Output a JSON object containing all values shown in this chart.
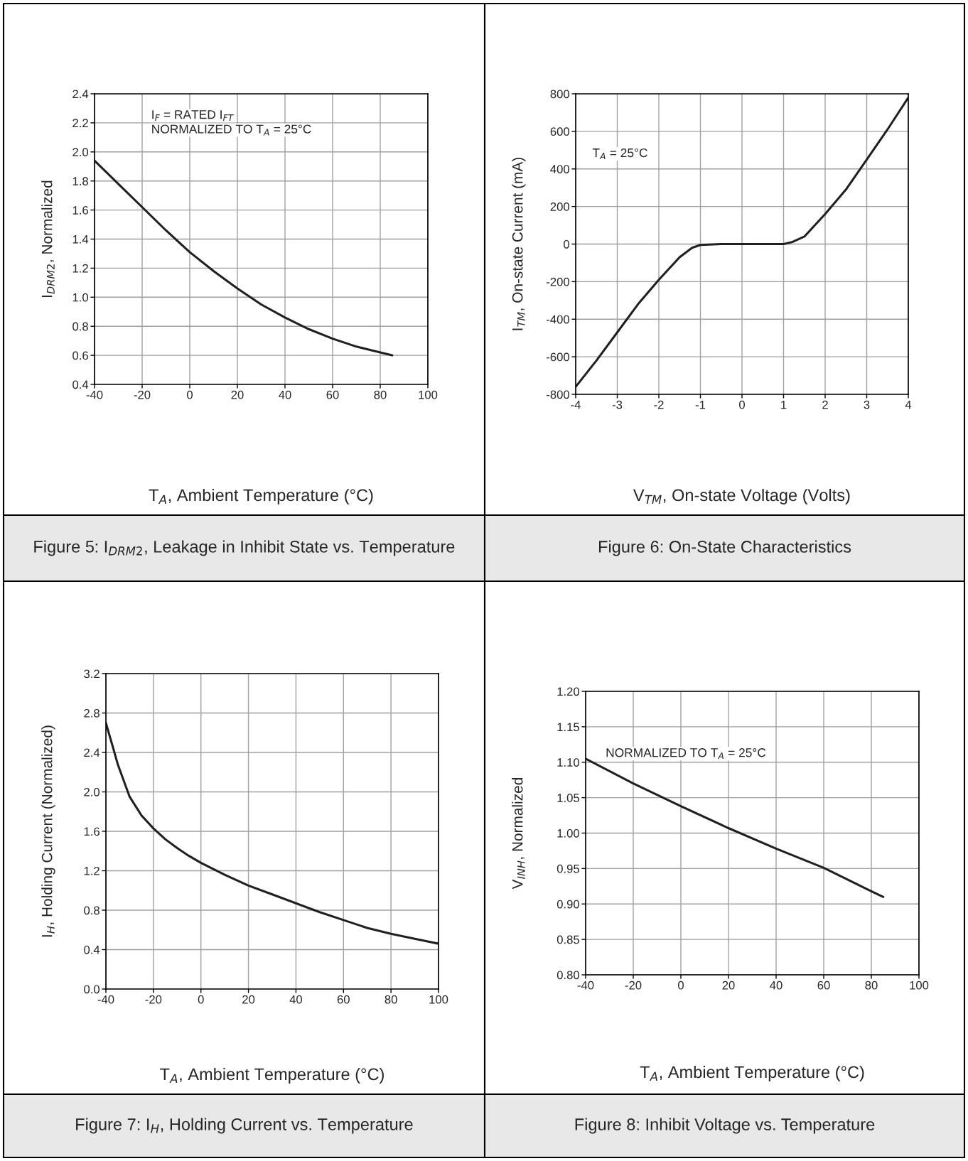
{
  "chart_data": [
    {
      "type": "line",
      "title": "Figure 5: I$_{DRM2}$, Leakage in Inhibit State vs. Temperature",
      "xlabel": "T$_{A}$, Ambient Temperature (°C)",
      "ylabel": "I$_{DRM2}$, Normalized",
      "annotations": [
        "I$_{F}$ = RATED I$_{FT}$",
        "NORMALIZED TO T$_{A}$ = 25°C"
      ],
      "series": [
        {
          "color": "#231f20",
          "x": [
            -40,
            -30,
            -20,
            -10,
            0,
            10,
            20,
            30,
            40,
            50,
            60,
            70,
            80,
            85
          ],
          "values": [
            1.94,
            1.78,
            1.62,
            1.46,
            1.31,
            1.18,
            1.06,
            0.95,
            0.86,
            0.78,
            0.715,
            0.66,
            0.62,
            0.6
          ]
        }
      ],
      "xlim": [
        -40,
        100
      ],
      "xticks": [
        -40,
        -20,
        0,
        20,
        40,
        60,
        80,
        100
      ],
      "ylim": [
        0.4,
        2.4
      ],
      "yticks": [
        {
          "value": 0.4,
          "label": "0.4"
        },
        {
          "value": 0.6,
          "label": "0.6"
        },
        {
          "value": 0.8,
          "label": "0.8"
        },
        {
          "value": 1.0,
          "label": "1.0"
        },
        {
          "value": 1.2,
          "label": "1.2"
        },
        {
          "value": 1.4,
          "label": "1.4"
        },
        {
          "value": 1.6,
          "label": "1.6"
        },
        {
          "value": 1.8,
          "label": "1.8"
        },
        {
          "value": 2.0,
          "label": "2.0"
        },
        {
          "value": 2.2,
          "label": "2.2"
        },
        {
          "value": 2.4,
          "label": "2.4"
        }
      ],
      "grid": true,
      "line_style": "solid",
      "legend": false
    },
    {
      "type": "line",
      "title": "Figure 6: On-State Characteristics",
      "xlabel": "V$_{TM}$, On-state Voltage (Volts)",
      "ylabel": "I$_{TM}$, On-state Current (mA)",
      "annotations": [
        "T$_{A}$ = 25°C"
      ],
      "series": [
        {
          "color": "#231f20",
          "x": [
            -4,
            -3.5,
            -3,
            -2.5,
            -2,
            -1.5,
            -1.2,
            -1,
            -0.5,
            0,
            0.5,
            1,
            1.2,
            1.5,
            2,
            2.5,
            3,
            3.5,
            4
          ],
          "values": [
            -760,
            -620,
            -470,
            -320,
            -190,
            -70,
            -20,
            -5,
            0,
            0,
            0,
            0,
            10,
            40,
            160,
            290,
            450,
            610,
            780
          ]
        }
      ],
      "xlim": [
        -4,
        4
      ],
      "xticks": [
        -4,
        -3,
        -2,
        -1,
        0,
        1,
        2,
        3,
        4
      ],
      "ylim": [
        -800,
        800
      ],
      "yticks": [
        -800,
        -600,
        -400,
        -200,
        0,
        200,
        400,
        600,
        800
      ],
      "grid": true,
      "line_style": "solid",
      "legend": false
    },
    {
      "type": "line",
      "title": "Figure 7: I$_{H}$, Holding Current vs. Temperature",
      "xlabel": "T$_{A}$, Ambient Temperature (°C)",
      "ylabel": "I$_{H}$, Holding Current (Normalized)",
      "series": [
        {
          "color": "#231f20",
          "x": [
            -40,
            -37,
            -35,
            -30,
            -25,
            -20,
            -15,
            -10,
            -5,
            0,
            10,
            20,
            30,
            40,
            50,
            60,
            70,
            80,
            90,
            100
          ],
          "values": [
            2.7,
            2.45,
            2.28,
            1.95,
            1.76,
            1.63,
            1.52,
            1.43,
            1.35,
            1.28,
            1.16,
            1.05,
            0.96,
            0.87,
            0.78,
            0.7,
            0.62,
            0.56,
            0.51,
            0.46
          ]
        }
      ],
      "xlim": [
        -40,
        100
      ],
      "xticks": [
        -40,
        -20,
        0,
        20,
        40,
        60,
        80,
        100
      ],
      "ylim": [
        0,
        3.2
      ],
      "yticks": [
        {
          "value": 0,
          "label": "0.0"
        },
        {
          "value": 0.4,
          "label": "0.4"
        },
        {
          "value": 0.8,
          "label": "0.8"
        },
        {
          "value": 1.2,
          "label": "1.2"
        },
        {
          "value": 1.6,
          "label": "1.6"
        },
        {
          "value": 2.0,
          "label": "2.0"
        },
        {
          "value": 2.4,
          "label": "2.4"
        },
        {
          "value": 2.8,
          "label": "2.8"
        },
        {
          "value": 3.2,
          "label": "3.2"
        }
      ],
      "grid": true,
      "line_style": "solid",
      "legend": false
    },
    {
      "type": "line",
      "title": "Figure 8: Inhibit Voltage vs. Temperature",
      "xlabel": "T$_{A}$, Ambient Temperature (°C)",
      "ylabel": "V$_{INH}$, Normalized",
      "annotations": [
        "NORMALIZED TO T$_{A}$ = 25°C"
      ],
      "series": [
        {
          "color": "#231f20",
          "x": [
            -40,
            -20,
            0,
            20,
            40,
            60,
            80,
            85
          ],
          "values": [
            1.105,
            1.07,
            1.038,
            1.007,
            0.978,
            0.951,
            0.918,
            0.91
          ]
        }
      ],
      "xlim": [
        -40,
        100
      ],
      "xticks": [
        -40,
        -20,
        0,
        20,
        40,
        60,
        80,
        100
      ],
      "ylim": [
        0.8,
        1.2
      ],
      "yticks": [
        {
          "value": 0.8,
          "label": "0.80"
        },
        {
          "value": 0.85,
          "label": "0.85"
        },
        {
          "value": 0.9,
          "label": "0.90"
        },
        {
          "value": 0.95,
          "label": "0.95"
        },
        {
          "value": 1.0,
          "label": "1.00"
        },
        {
          "value": 1.05,
          "label": "1.05"
        },
        {
          "value": 1.1,
          "label": "1.10"
        },
        {
          "value": 1.15,
          "label": "1.15"
        },
        {
          "value": 1.2,
          "label": "1.20"
        }
      ],
      "grid": true,
      "line_style": "solid",
      "legend": false
    }
  ]
}
